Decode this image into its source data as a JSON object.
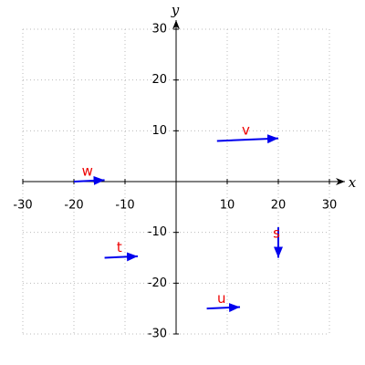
{
  "chart_data": {
    "type": "quiver",
    "xlabel": "x",
    "ylabel": "y",
    "xlim": [
      -30,
      30
    ],
    "ylim": [
      -30,
      30
    ],
    "xticks": [
      -30,
      -20,
      -10,
      10,
      20,
      30
    ],
    "yticks": [
      -30,
      -20,
      -10,
      10,
      20,
      30
    ],
    "grid": true,
    "arrow_color": "#0000ee",
    "label_color": "#ee0000",
    "vectors": [
      {
        "name": "v",
        "x": 8,
        "y": 8,
        "dx": 12,
        "dy": 0.5
      },
      {
        "name": "w",
        "x": -20,
        "y": 0,
        "dx": 6,
        "dy": 0.3
      },
      {
        "name": "t",
        "x": -14,
        "y": -15,
        "dx": 6.5,
        "dy": 0.3
      },
      {
        "name": "u",
        "x": 6,
        "y": -25,
        "dx": 6.5,
        "dy": 0.3
      },
      {
        "name": "s",
        "x": 20,
        "y": -9,
        "dx": 0,
        "dy": -6
      }
    ]
  }
}
